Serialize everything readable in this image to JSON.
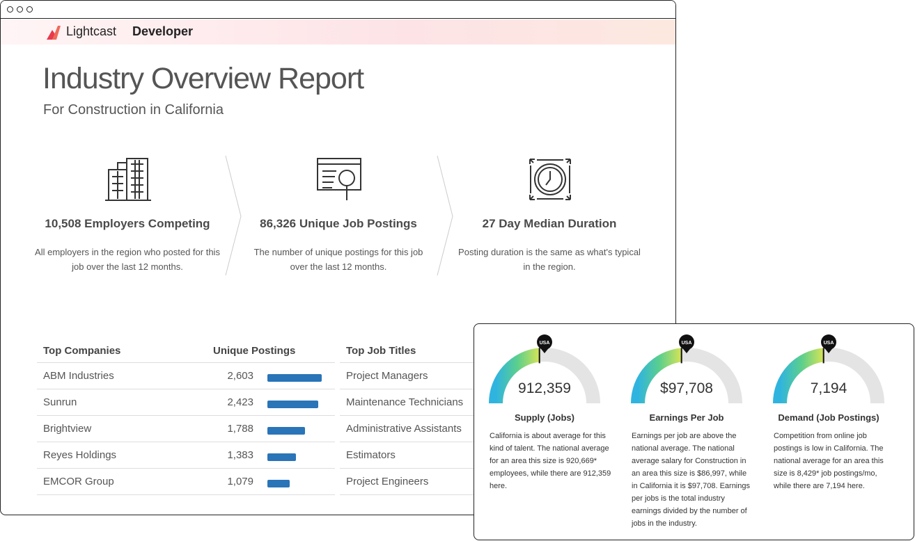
{
  "window": {
    "brand": "Lightcast",
    "product": "Developer"
  },
  "report": {
    "title": "Industry Overview Report",
    "subtitle": "For Construction in California"
  },
  "stats": [
    {
      "headline": "10,508 Employers Competing",
      "description": "All employers in the region who posted for this job over the last 12 months."
    },
    {
      "headline": "86,326 Unique Job Postings",
      "description": "The number of unique postings for this job over the last 12 months."
    },
    {
      "headline": "27 Day Median Duration",
      "description": "Posting duration is the same as what's typical in the region."
    }
  ],
  "companies": {
    "headers": [
      "Top Companies",
      "Unique Postings"
    ],
    "rows": [
      {
        "name": "ABM Industries",
        "postings": {
          "value": 2603,
          "label": "2,603"
        }
      },
      {
        "name": "Sunrun",
        "postings": {
          "value": 2423,
          "label": "2,423"
        }
      },
      {
        "name": "Brightview",
        "postings": {
          "value": 1788,
          "label": "1,788"
        }
      },
      {
        "name": "Reyes Holdings",
        "postings": {
          "value": 1383,
          "label": "1,383"
        }
      },
      {
        "name": "EMCOR Group",
        "postings": {
          "value": 1079,
          "label": "1,079"
        }
      }
    ]
  },
  "job_titles": {
    "header": "Top Job Titles",
    "rows": [
      "Project Managers",
      "Maintenance Technicians",
      "Administrative Assistants",
      "Estimators",
      "Project Engineers"
    ]
  },
  "gauges": [
    {
      "marker": "USA",
      "value": "912,359",
      "label": "Supply (Jobs)",
      "description": "California is about average for this kind of talent. The national average for an area this size is 920,669* employees, while there are 912,359 here."
    },
    {
      "marker": "USA",
      "value": "$97,708",
      "label": "Earnings Per Job",
      "description": "Earnings per job are above the national average. The national average salary for Construction in an area this size is $86,997, while in California it is $97,708. Earnings per jobs is the total industry earnings divided by the number of jobs in the industry."
    },
    {
      "marker": "USA",
      "value": "7,194",
      "label": "Demand (Job Postings)",
      "description": "Competition from online job postings is low in California. The national average for an area this size is 8,429* job postings/mo, while there are 7,194 here."
    }
  ]
}
